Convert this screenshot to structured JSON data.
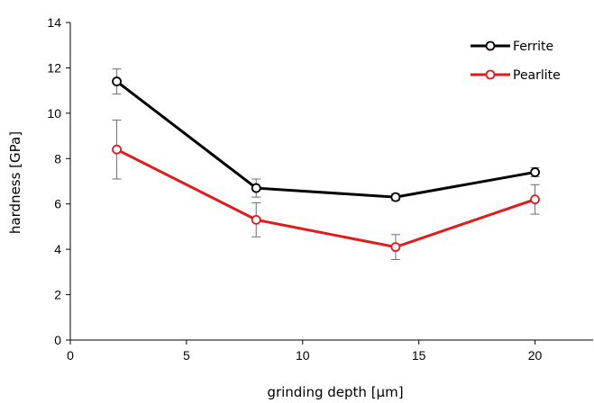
{
  "chart_data": {
    "type": "line",
    "title": "",
    "xlabel": "grinding depth [µm]",
    "ylabel": "hardness [GPa]",
    "xlim": [
      0,
      22.5
    ],
    "ylim": [
      0,
      14
    ],
    "xticks": [
      0,
      5,
      10,
      15,
      20
    ],
    "yticks": [
      0,
      2,
      4,
      6,
      8,
      10,
      12,
      14
    ],
    "grid": false,
    "legend_position": "top-right",
    "x": [
      2,
      8,
      14,
      20
    ],
    "series": [
      {
        "name": "Ferrite",
        "color": "#000000",
        "marker": "open-circle",
        "values": [
          11.4,
          6.7,
          6.3,
          7.4
        ],
        "error": [
          0.55,
          0.4,
          0.15,
          0.2
        ]
      },
      {
        "name": "Pearlite",
        "color": "#e31a1c",
        "marker": "open-circle",
        "values": [
          8.4,
          5.3,
          4.1,
          6.2
        ],
        "error": [
          1.3,
          0.75,
          0.55,
          0.65
        ]
      }
    ]
  }
}
